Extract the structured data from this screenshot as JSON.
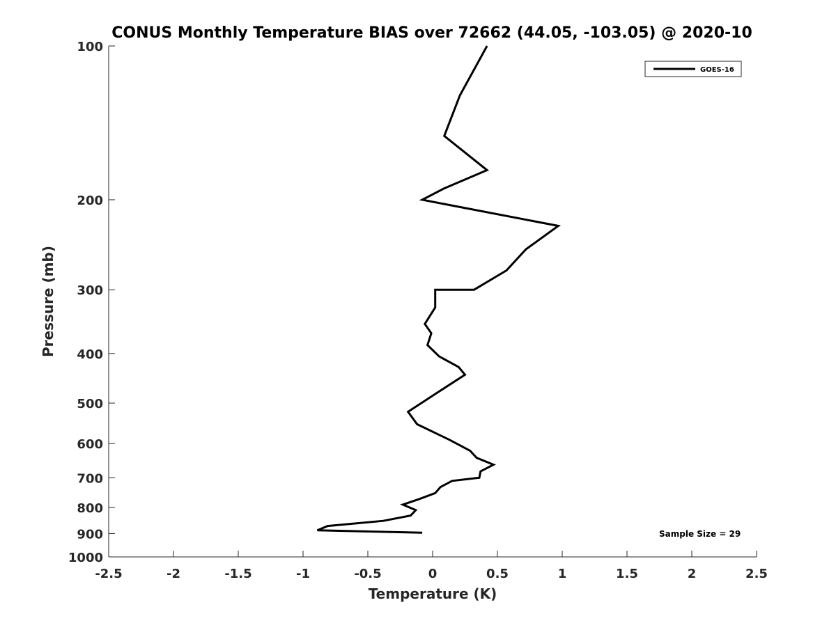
{
  "chart_data": {
    "type": "line",
    "title": "CONUS Monthly Temperature BIAS over 72662 (44.05, -103.05) @ 2020-10",
    "xlabel": "Temperature (K)",
    "ylabel": "Pressure (mb)",
    "xlim": [
      -2.5,
      2.5
    ],
    "ylim": [
      100,
      1000
    ],
    "y_scale": "log",
    "y_reversed": true,
    "grid": false,
    "legend_position": "top-right",
    "x_ticks": [
      -2.5,
      -2,
      -1.5,
      -1,
      -0.5,
      0,
      0.5,
      1,
      1.5,
      2,
      2.5
    ],
    "x_tick_labels": [
      "-2.5",
      "-2",
      "-1.5",
      "-1",
      "-0.5",
      "0",
      "0.5",
      "1",
      "1.5",
      "2",
      "2.5"
    ],
    "y_ticks": [
      100,
      200,
      300,
      400,
      500,
      600,
      700,
      800,
      900,
      1000
    ],
    "y_tick_labels": [
      "100",
      "200",
      "300",
      "400",
      "500",
      "600",
      "700",
      "800",
      "900",
      "1000"
    ],
    "series": [
      {
        "name": "GOES-16",
        "color": "#000000",
        "x": [
          0.42,
          0.21,
          0.09,
          0.42,
          0.09,
          -0.08,
          0.97,
          0.72,
          0.57,
          0.32,
          0.02,
          0.02,
          -0.06,
          -0.01,
          -0.04,
          0.05,
          0.2,
          0.25,
          0.02,
          -0.19,
          -0.12,
          0.13,
          0.29,
          0.34,
          0.47,
          0.37,
          0.36,
          0.15,
          0.06,
          0.02,
          -0.1,
          -0.23,
          -0.13,
          -0.17,
          -0.38,
          -0.81,
          -0.89,
          -0.08
        ],
        "y": [
          100,
          125,
          150,
          175,
          190,
          200,
          225,
          250,
          275,
          300,
          300,
          325,
          350,
          365,
          385,
          405,
          425,
          440,
          480,
          520,
          550,
          590,
          620,
          640,
          660,
          680,
          700,
          710,
          730,
          750,
          770,
          790,
          810,
          830,
          850,
          870,
          887,
          897
        ]
      }
    ],
    "annotation": "Sample Size = 29"
  }
}
